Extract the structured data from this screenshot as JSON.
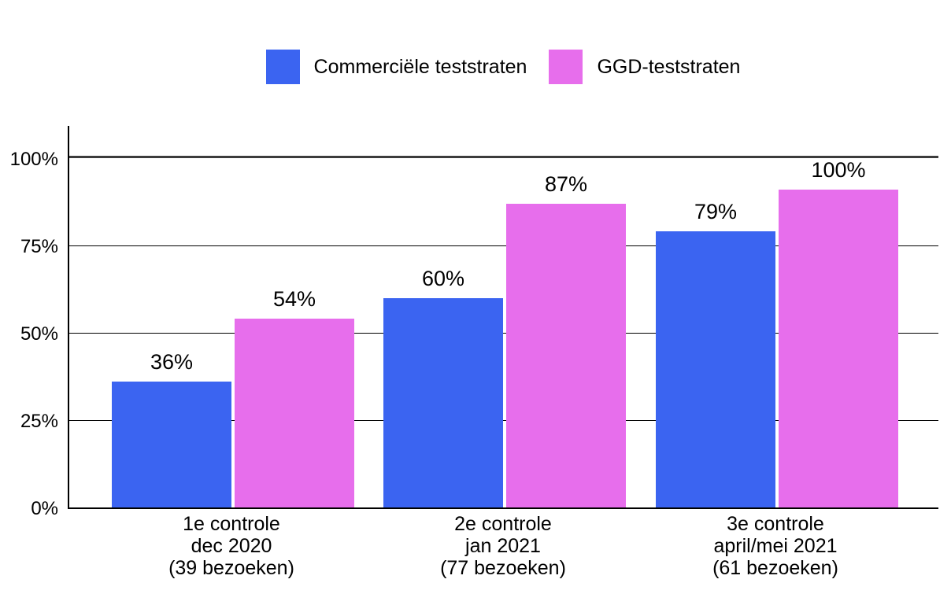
{
  "chart_data": {
    "type": "bar",
    "title": "",
    "xlabel": "",
    "ylabel": "",
    "ylim": [
      0,
      100
    ],
    "grid": true,
    "legend_position": "top",
    "yticks": [
      "0%",
      "25%",
      "50%",
      "75%",
      "100%"
    ],
    "categories": [
      "1e controle dec 2020 (39 bezoeken)",
      "2e controle jan 2021 (77 bezoeken)",
      "3e controle april/mei 2021 (61 bezoeken)"
    ],
    "categories_lines": [
      [
        "1e controle",
        "dec 2020",
        "(39 bezoeken)"
      ],
      [
        "2e controle",
        "jan 2021",
        "(77 bezoeken)"
      ],
      [
        "3e controle",
        "april/mei 2021",
        "(61 bezoeken)"
      ]
    ],
    "series": [
      {
        "name": "Commerciële teststraten",
        "color": "#3b64f1",
        "values": [
          36,
          60,
          79
        ],
        "labels": [
          "36%",
          "60%",
          "79%"
        ]
      },
      {
        "name": "GGD-teststraten",
        "color": "#e76eec",
        "values": [
          54,
          87,
          100
        ],
        "labels": [
          "54%",
          "87%",
          "100%"
        ]
      }
    ],
    "colors": {
      "gridline": "#000000",
      "topline": "#3c3c3c",
      "axis": "#000000",
      "text": "#000000"
    }
  }
}
